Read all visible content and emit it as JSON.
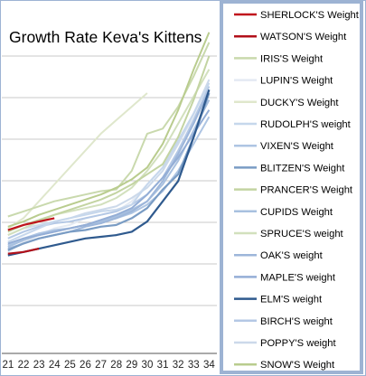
{
  "chart_data": {
    "type": "line",
    "title": "Growth Rate Keva's Kittens",
    "xlabel": "",
    "ylabel": "",
    "x": [
      21,
      22,
      23,
      24,
      25,
      26,
      27,
      28,
      29,
      30,
      31,
      32,
      33,
      34
    ],
    "xlim": [
      20.6,
      34.5
    ],
    "ylim": [
      0,
      100
    ],
    "grid": true,
    "legend": "right",
    "series": [
      {
        "name": "SHERLOCK'S Weight",
        "color": "#c0121c",
        "x": [
          21,
          22,
          23,
          24
        ],
        "values": [
          36.5,
          38.0,
          39.0,
          40.0
        ]
      },
      {
        "name": "WATSON'S Weight",
        "color": "#b2101a",
        "x": [
          21,
          22,
          23
        ],
        "values": [
          29.5,
          30.0,
          31.0
        ]
      },
      {
        "name": "IRIS'S Weight",
        "color": "#c9d9ad",
        "x": [
          21,
          22,
          23,
          24,
          25,
          26,
          27,
          28,
          29,
          30,
          31,
          32,
          33,
          34
        ],
        "values": [
          40.5,
          42.0,
          43.5,
          45.0,
          46.0,
          47.0,
          48.0,
          48.5,
          54.0,
          65.0,
          66.5,
          73.0,
          82.0,
          92.0
        ]
      },
      {
        "name": "LUPIN'S Weight",
        "color": "#e4eaf3",
        "x": [
          21,
          22,
          23,
          24,
          25,
          26,
          27,
          28,
          29,
          30,
          31,
          32,
          33,
          34
        ],
        "values": [
          30.0,
          33.0,
          35.0,
          37.0,
          38.0,
          40.0,
          41.0,
          42.0,
          45.0,
          50.0,
          55.0,
          62.0,
          70.0,
          78.0
        ]
      },
      {
        "name": "DUCKY'S Weight",
        "color": "#dfe7cc",
        "x": [
          21,
          22,
          23,
          24,
          25,
          26,
          27,
          28,
          29,
          30
        ],
        "values": [
          37.0,
          40.0,
          45.0,
          50.0,
          55.0,
          60.0,
          65.0,
          69.0,
          73.0,
          77.0
        ]
      },
      {
        "name": "RUDOLPH'S  weight",
        "color": "#c6d7ec",
        "x": [
          21,
          22,
          23,
          24,
          25,
          26,
          27,
          28,
          29,
          30,
          31,
          32,
          33,
          34
        ],
        "values": [
          33.0,
          35.0,
          37.0,
          39.0,
          40.0,
          41.0,
          42.0,
          42.5,
          44.0,
          50.0,
          55.0,
          63.0,
          71.0,
          80.0
        ]
      },
      {
        "name": "VIXEN'S Weight",
        "color": "#aec5e3",
        "x": [
          21,
          22,
          23,
          24,
          25,
          26,
          27,
          28,
          29,
          30,
          31,
          32,
          33,
          34
        ],
        "values": [
          32.0,
          34.0,
          35.5,
          36.5,
          37.0,
          38.0,
          38.5,
          40.0,
          41.5,
          44.0,
          48.0,
          54.0,
          62.0,
          70.0
        ]
      },
      {
        "name": "BLITZEN'S Weight",
        "color": "#7a9cc4",
        "x": [
          21,
          22,
          23,
          24,
          25,
          26,
          27,
          28,
          29,
          30,
          31,
          32,
          33,
          34
        ],
        "values": [
          30.5,
          32.5,
          34.0,
          35.0,
          36.0,
          36.5,
          37.5,
          38.0,
          40.0,
          43.0,
          48.5,
          53.0,
          64.0,
          77.0
        ]
      },
      {
        "name": "PRANCER'S Weight",
        "color": "#c3d4a2",
        "x": [
          21,
          22,
          23,
          24,
          25,
          26,
          27,
          28,
          29,
          30,
          31,
          32,
          33,
          34
        ],
        "values": [
          36.0,
          38.0,
          39.5,
          41.0,
          42.5,
          44.0,
          45.5,
          47.5,
          50.0,
          53.0,
          56.0,
          64.0,
          75.0,
          88.0
        ]
      },
      {
        "name": "CUPIDS Weight",
        "color": "#a8c0df",
        "x": [
          21,
          22,
          23,
          24,
          25,
          26,
          27,
          28,
          29,
          30,
          31,
          32,
          33,
          34
        ],
        "values": [
          31.5,
          33.5,
          35.0,
          36.0,
          37.0,
          38.0,
          39.0,
          40.5,
          42.5,
          45.0,
          50.0,
          57.0,
          66.0,
          75.0
        ]
      },
      {
        "name": "SPRUCE'S  weight",
        "color": "#d2e0bd",
        "x": [
          21,
          22,
          23,
          24,
          25,
          26,
          27,
          28,
          29,
          30,
          31,
          32,
          33,
          34
        ],
        "values": [
          35.0,
          37.0,
          39.0,
          41.0,
          42.0,
          43.0,
          44.0,
          46.0,
          49.0,
          54.0,
          60.0,
          68.0,
          76.0,
          84.0
        ]
      },
      {
        "name": "OAK'S weight",
        "color": "#9db6da",
        "x": [
          21,
          22,
          23,
          24,
          25,
          26,
          27,
          28,
          29,
          30,
          31,
          32,
          33,
          34
        ],
        "values": [
          31.0,
          32.5,
          34.0,
          35.0,
          36.0,
          37.5,
          38.5,
          40.0,
          42.0,
          45.0,
          51.0,
          59.0,
          68.0,
          78.0
        ]
      },
      {
        "name": "MAPLE'S  weight",
        "color": "#94aed6",
        "x": [
          21,
          22,
          23,
          24,
          25,
          26,
          27,
          28,
          29,
          30,
          31,
          32,
          33,
          34
        ],
        "values": [
          32.5,
          34.0,
          35.0,
          36.0,
          37.0,
          38.0,
          39.5,
          41.0,
          43.0,
          47.0,
          52.0,
          58.0,
          65.0,
          72.0
        ]
      },
      {
        "name": "ELM'S weight",
        "color": "#2f5a8e",
        "x": [
          21,
          22,
          23,
          24,
          25,
          26,
          27,
          28,
          29,
          30,
          31,
          32,
          33,
          34
        ],
        "values": [
          29.0,
          30.0,
          31.0,
          32.0,
          33.0,
          34.0,
          34.5,
          35.0,
          36.0,
          39.0,
          45.0,
          51.0,
          64.0,
          78.0
        ]
      },
      {
        "name": "BIRCH'S weight",
        "color": "#b4c8e5",
        "x": [
          21,
          22,
          23,
          24,
          25,
          26,
          27,
          28,
          29,
          30,
          31,
          32,
          33,
          34
        ],
        "values": [
          34.0,
          36.0,
          37.5,
          38.5,
          39.0,
          40.0,
          41.0,
          42.0,
          44.0,
          47.0,
          52.0,
          60.0,
          69.0,
          79.0
        ]
      },
      {
        "name": "POPPY'S  weight",
        "color": "#ccd9ea",
        "x": [
          21,
          22,
          23,
          24,
          25,
          26,
          27,
          28,
          29,
          30,
          31,
          32,
          33,
          34
        ],
        "values": [
          35.0,
          37.0,
          38.0,
          39.0,
          40.0,
          41.5,
          42.5,
          43.5,
          46.0,
          49.0,
          54.0,
          62.0,
          71.0,
          81.0
        ]
      },
      {
        "name": "SNOW'S Weight",
        "color": "#b9cc8e",
        "x": [
          21,
          22,
          23,
          24,
          25,
          26,
          27,
          28,
          29,
          30,
          31,
          32,
          33,
          34
        ],
        "values": [
          37.5,
          39.0,
          41.0,
          42.5,
          44.0,
          45.5,
          47.0,
          49.0,
          51.5,
          55.0,
          62.0,
          72.0,
          84.0,
          95.0
        ]
      }
    ]
  }
}
